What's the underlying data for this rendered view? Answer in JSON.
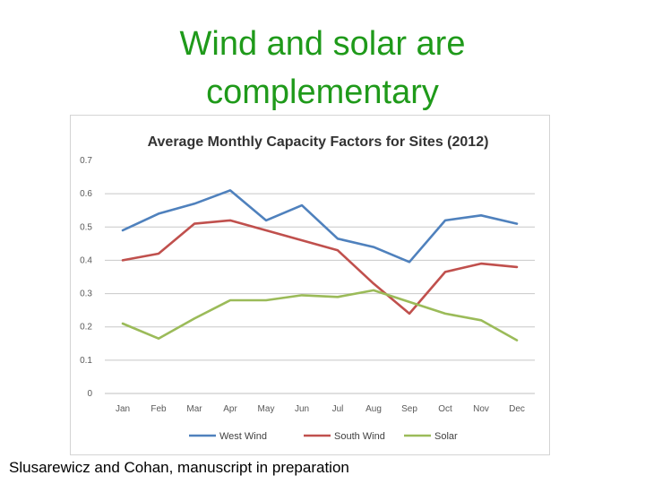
{
  "slide": {
    "title_line1": "Wind and solar are",
    "title_line2": "complementary",
    "caption": "Slusarewicz and Cohan, manuscript in preparation"
  },
  "chart_data": {
    "type": "line",
    "title": "Average Monthly Capacity Factors for Sites (2012)",
    "xlabel": "",
    "ylabel": "",
    "ylim": [
      0,
      0.7
    ],
    "yticks": [
      "0",
      "0.1",
      "0.2",
      "0.3",
      "0.4",
      "0.5",
      "0.6",
      "0.7"
    ],
    "grid": true,
    "legend_position": "bottom",
    "categories": [
      "Jan",
      "Feb",
      "Mar",
      "Apr",
      "May",
      "Jun",
      "Jul",
      "Aug",
      "Sep",
      "Oct",
      "Nov",
      "Dec"
    ],
    "series": [
      {
        "name": "West Wind",
        "color": "#4f81bd",
        "values": [
          0.49,
          0.54,
          0.57,
          0.61,
          0.52,
          0.565,
          0.465,
          0.44,
          0.395,
          0.52,
          0.535,
          0.51
        ]
      },
      {
        "name": "South Wind",
        "color": "#c0504d",
        "values": [
          0.4,
          0.42,
          0.51,
          0.52,
          0.49,
          0.46,
          0.43,
          0.33,
          0.24,
          0.365,
          0.39,
          0.38
        ]
      },
      {
        "name": "Solar",
        "color": "#9bbb59",
        "values": [
          0.21,
          0.165,
          0.225,
          0.28,
          0.28,
          0.295,
          0.29,
          0.31,
          0.275,
          0.24,
          0.22,
          0.16
        ]
      }
    ]
  }
}
